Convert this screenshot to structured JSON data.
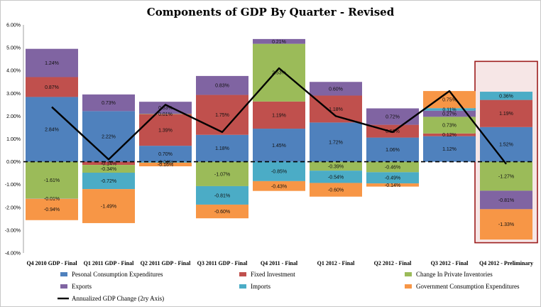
{
  "chart_data": {
    "type": "bar",
    "stacked": true,
    "title": "Components of GDP By Quarter - Revised",
    "categories": [
      "Q4 2010 GDP - Final",
      "Q1 2011 GDP - Final",
      "Q2 2011 GDP - Final",
      "Q3 2011 GDP - Final",
      "Q4 2011 - Final",
      "Q1 2012 - Final",
      "Q2 2012 - Final",
      "Q3 2012 - Final",
      "Q4 2012 - Preliminary"
    ],
    "ylim": [
      -4.0,
      6.0
    ],
    "yticks": [
      "6.00%",
      "5.00%",
      "4.00%",
      "3.00%",
      "2.00%",
      "1.00%",
      "0.00%",
      "-1.00%",
      "-2.00%",
      "-3.00%",
      "-4.00%"
    ],
    "series": [
      {
        "name": "Pesonal Consumption Expenditures",
        "color": "#4f81bd",
        "values": [
          2.84,
          2.22,
          0.7,
          1.18,
          1.45,
          1.72,
          1.06,
          1.12,
          1.52
        ]
      },
      {
        "name": "Fixed Investment",
        "color": "#c0504d",
        "values": [
          0.87,
          -0.14,
          1.39,
          1.75,
          1.19,
          1.18,
          0.56,
          0.12,
          1.19
        ]
      },
      {
        "name": "Change In Private Inventories",
        "color": "#9bbb59",
        "values": [
          -1.61,
          -0.34,
          0.01,
          -1.07,
          2.53,
          -0.39,
          -0.46,
          0.73,
          -1.27
        ]
      },
      {
        "name": "Exports",
        "color": "#8064a2",
        "values": [
          1.24,
          0.73,
          0.53,
          0.83,
          0.21,
          0.6,
          0.72,
          0.27,
          -0.81
        ]
      },
      {
        "name": "Imports",
        "color": "#4bacc6",
        "values": [
          -0.01,
          -0.72,
          -0.04,
          -0.81,
          -0.85,
          -0.54,
          -0.49,
          0.11,
          0.36
        ]
      },
      {
        "name": "Government Consumption Expenditures",
        "color": "#f79646",
        "values": [
          -0.94,
          -1.49,
          -0.16,
          -0.6,
          -0.43,
          -0.6,
          -0.14,
          0.75,
          -1.33
        ]
      }
    ],
    "data_labels": [
      [
        "2.84%",
        "0.87%",
        "-1.61%",
        "1.24%",
        "-0.01%",
        "-0.94%"
      ],
      [
        "2.22%",
        "-0.14%",
        "-0.34%",
        "0.73%",
        "-0.72%",
        "-1.49%"
      ],
      [
        "0.70%",
        "1.39%",
        "0.01%",
        "0.53%",
        "-0.04%",
        "-0.16%"
      ],
      [
        "1.18%",
        "1.75%",
        "-1.07%",
        "0.83%",
        "-0.81%",
        "-0.60%"
      ],
      [
        "1.45%",
        "1.19%",
        "2.53%",
        "0.21%",
        "-0.85%",
        "-0.43%"
      ],
      [
        "1.72%",
        "1.18%",
        "-0.39%",
        "0.60%",
        "-0.54%",
        "-0.60%"
      ],
      [
        "1.06%",
        "0.56%",
        "-0.46%",
        "0.72%",
        "-0.49%",
        "-0.14%"
      ],
      [
        "1.12%",
        "0.12%",
        "0.73%",
        "0.27%",
        "0.11%",
        "0.75%"
      ],
      [
        "1.52%",
        "1.19%",
        "-1.27%",
        "-0.81%",
        "0.36%",
        "-1.33%"
      ]
    ],
    "line": {
      "name": "Annualized GDP Change (2ry Axis)",
      "color": "#000000",
      "values": [
        2.4,
        0.1,
        2.5,
        1.3,
        4.1,
        2.0,
        1.3,
        3.1,
        -0.1
      ]
    },
    "zero_line": "dashed",
    "highlight_category": "Q4 2012 - Preliminary",
    "highlight_color": "#9c1c1c",
    "legend_position": "bottom"
  }
}
